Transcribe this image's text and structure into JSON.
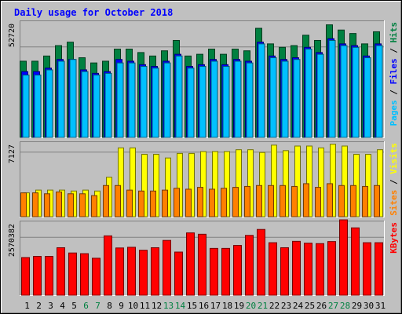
{
  "chart_data": {
    "type": "bar",
    "title": "Daily usage for October 2018",
    "days": [
      "1",
      "2",
      "3",
      "4",
      "5",
      "6",
      "7",
      "8",
      "9",
      "10",
      "11",
      "12",
      "13",
      "14",
      "15",
      "16",
      "17",
      "18",
      "19",
      "20",
      "21",
      "22",
      "23",
      "24",
      "25",
      "26",
      "27",
      "28",
      "29",
      "30",
      "31"
    ],
    "weekend_days": [
      "6",
      "7",
      "13",
      "14",
      "20",
      "21",
      "27",
      "28"
    ],
    "panels": [
      {
        "name": "hits-files-pages",
        "tick_label": "52720",
        "tick_value": 52720,
        "ymax": 68000,
        "axis_labels": [
          "Pages",
          "Files",
          "Hits"
        ],
        "series": [
          {
            "name": "Hits",
            "color": "#008040",
            "values": [
              44000,
              44000,
              47000,
              53000,
              55000,
              46000,
              43000,
              44000,
              51000,
              51000,
              49000,
              47000,
              50000,
              56000,
              47000,
              48000,
              51000,
              48000,
              51000,
              50000,
              63000,
              54000,
              52000,
              53000,
              59000,
              56000,
              65000,
              62000,
              60000,
              54000,
              61000
            ]
          },
          {
            "name": "Files",
            "color": "#0000ff",
            "values": [
              38000,
              38000,
              40000,
              45000,
              45000,
              39000,
              37000,
              38000,
              45000,
              44000,
              42000,
              41000,
              44000,
              48000,
              41000,
              42000,
              45000,
              42000,
              45000,
              44000,
              55000,
              47000,
              45000,
              46000,
              52000,
              49000,
              57000,
              54000,
              53000,
              47000,
              54000
            ]
          },
          {
            "name": "Pages",
            "color": "#00c0ff",
            "values": [
              36000,
              36000,
              39000,
              44000,
              45000,
              38000,
              36000,
              37000,
              43000,
              43000,
              41000,
              40000,
              43000,
              47000,
              40000,
              41000,
              44000,
              41000,
              44000,
              43000,
              54000,
              46000,
              44000,
              45000,
              51000,
              48000,
              56000,
              53000,
              52000,
              46000,
              53000
            ]
          }
        ]
      },
      {
        "name": "visits-sites",
        "tick_label": "7127",
        "tick_value": 7127,
        "ymax": 8300,
        "axis_labels": [
          "Sites",
          "Visits"
        ],
        "series": [
          {
            "name": "Visits",
            "color": "#ffff00",
            "values": [
              2600,
              2900,
              2900,
              2900,
              2800,
              2900,
              2800,
              4300,
              7500,
              7500,
              6800,
              6800,
              6400,
              6900,
              6900,
              7100,
              7100,
              7100,
              7300,
              7300,
              7000,
              7800,
              7200,
              7700,
              7700,
              7500,
              7900,
              7700,
              6800,
              6800,
              7300
            ]
          },
          {
            "name": "Sites",
            "color": "#ff8000",
            "values": [
              2600,
              2600,
              2500,
              2700,
              2500,
              2500,
              2300,
              3400,
              3400,
              2900,
              2800,
              2800,
              2900,
              3100,
              3000,
              3200,
              3000,
              3100,
              3200,
              3300,
              3400,
              3400,
              3400,
              3300,
              3600,
              3200,
              3600,
              3400,
              3400,
              3300,
              3400
            ]
          }
        ]
      },
      {
        "name": "kbytes",
        "tick_label": "2570382",
        "tick_value": 2570382,
        "ymax": 3300000,
        "axis_labels": [
          "KBytes"
        ],
        "series": [
          {
            "name": "KBytes",
            "color": "#ff0000",
            "values": [
              1650000,
              1700000,
              1700000,
              2080000,
              1850000,
              1820000,
              1620000,
              2600000,
              2070000,
              2100000,
              1970000,
              2080000,
              2400000,
              1890000,
              2730000,
              2670000,
              2050000,
              2050000,
              2180000,
              2620000,
              2880000,
              2300000,
              2080000,
              2360000,
              2280000,
              2260000,
              2350000,
              3300000,
              2950000,
              2300000,
              2300000
            ]
          }
        ]
      }
    ]
  }
}
